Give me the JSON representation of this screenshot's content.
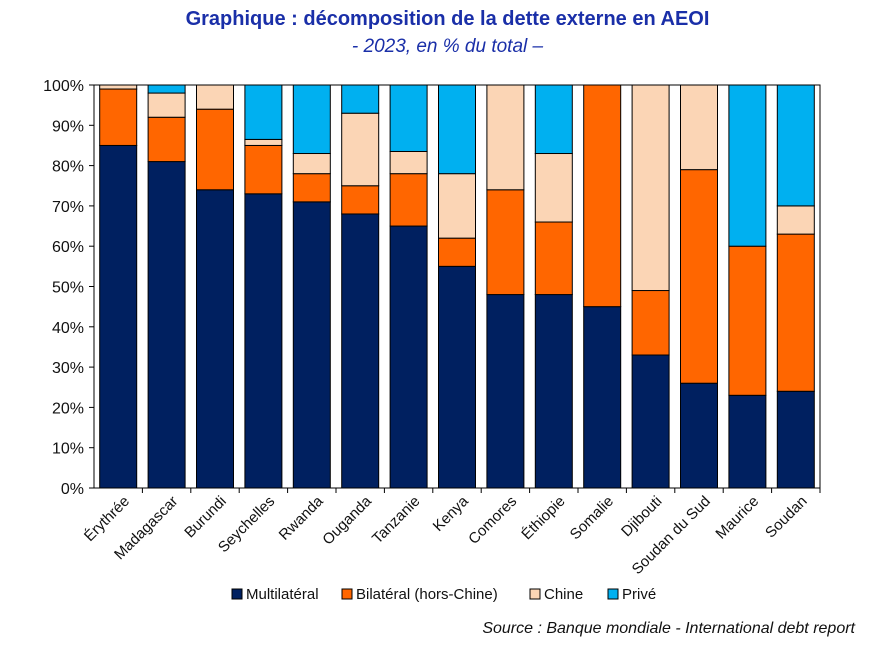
{
  "chart_data": {
    "type": "bar",
    "stacked": true,
    "title": "Graphique : décomposition de la dette externe en AEOI",
    "subtitle": "- 2023, en % du total –",
    "source": "Source : Banque mondiale - International debt report",
    "ylim": [
      0,
      100
    ],
    "yticks": [
      "0%",
      "10%",
      "20%",
      "30%",
      "40%",
      "50%",
      "60%",
      "70%",
      "80%",
      "90%",
      "100%"
    ],
    "categories": [
      "Érythrée",
      "Madagascar",
      "Burundi",
      "Seychelles",
      "Rwanda",
      "Ouganda",
      "Tanzanie",
      "Kenya",
      "Comores",
      "Éthiopie",
      "Somalie",
      "Djibouti",
      "Soudan du Sud",
      "Maurice",
      "Soudan"
    ],
    "series": [
      {
        "name": "Multilatéral",
        "color": "#002060",
        "values": [
          85,
          81,
          74,
          73,
          71,
          68,
          65,
          55,
          48,
          48,
          45,
          33,
          26,
          23,
          24
        ]
      },
      {
        "name": "Bilatéral (hors-Chine)",
        "color": "#ff6600",
        "values": [
          14,
          11,
          20,
          12,
          7,
          7,
          13,
          7,
          26,
          18,
          55,
          16,
          53,
          37,
          39
        ]
      },
      {
        "name": "Chine",
        "color": "#fbd5b5",
        "values": [
          1,
          6,
          6,
          1.5,
          5,
          18,
          5.5,
          16,
          26,
          17,
          0,
          51,
          21,
          0,
          7
        ]
      },
      {
        "name": "Privé",
        "color": "#00b0f0",
        "values": [
          0,
          2,
          0,
          13.5,
          17,
          7,
          16.5,
          22,
          0,
          17,
          0,
          0,
          0,
          40,
          30
        ]
      }
    ],
    "legend_position": "bottom"
  }
}
